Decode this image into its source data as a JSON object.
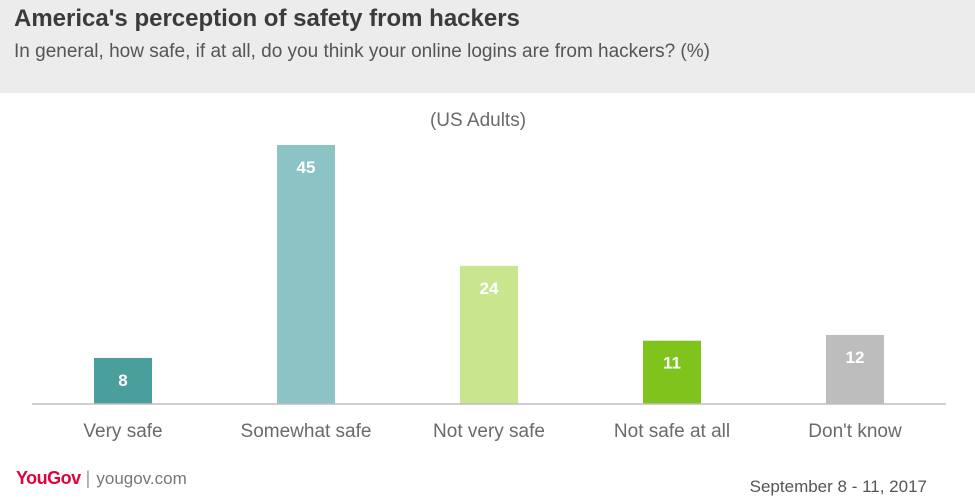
{
  "header": {
    "title": "America's perception of safety from hackers",
    "subtitle": "In general, how safe, if at all, do you think your online logins are from hackers? (%)"
  },
  "chart_data": {
    "type": "bar",
    "subtitle": "(US Adults)",
    "categories": [
      "Very safe",
      "Somewhat safe",
      "Not very safe",
      "Not safe at all",
      "Don't know"
    ],
    "values": [
      8,
      45,
      24,
      11,
      12
    ],
    "colors": [
      "#4a9e9b",
      "#8cc4c6",
      "#c8e68e",
      "#7fc31c",
      "#bdbdbd"
    ],
    "ylim": [
      0,
      45
    ],
    "grid": false,
    "data_labels": true
  },
  "footer": {
    "logo_text": "YouGov",
    "site": "yougov.com",
    "date": "September 8 - 11, 2017"
  }
}
